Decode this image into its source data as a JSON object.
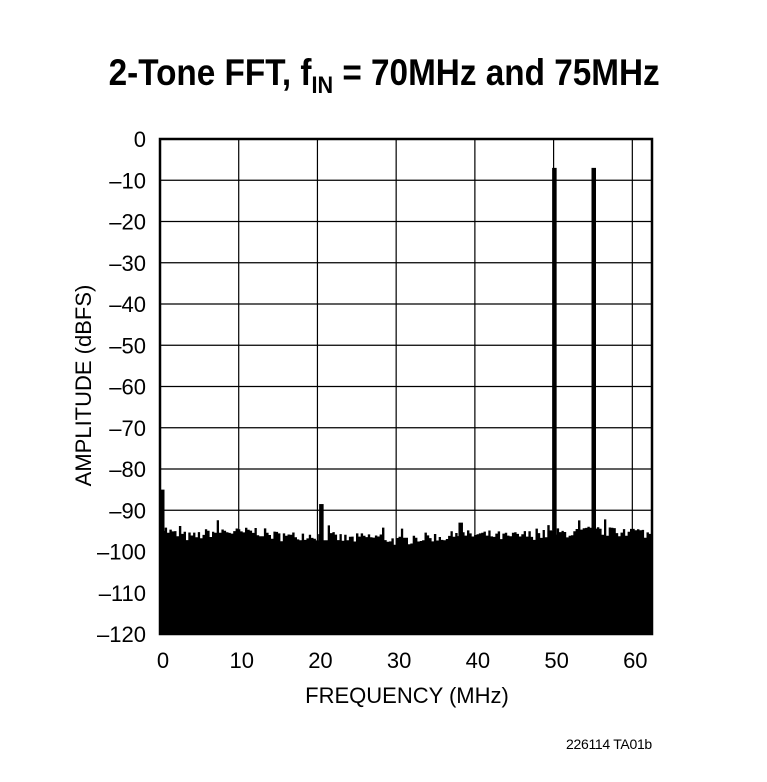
{
  "title": {
    "prefix": "2-Tone FFT, f",
    "subscript": "IN",
    "suffix": " = 70MHz and 75MHz"
  },
  "figure_id": "226114 TA01b",
  "chart_data": {
    "type": "bar",
    "title": "2-Tone FFT, fIN = 70MHz and 75MHz",
    "xlabel": "FREQUENCY (MHz)",
    "ylabel": "AMPLITUDE (dBFS)",
    "xlim": [
      0,
      62.5
    ],
    "ylim": [
      -120,
      0
    ],
    "x_ticks": [
      0,
      10,
      20,
      30,
      40,
      50,
      60
    ],
    "x_tick_labels": [
      "0",
      "10",
      "20",
      "30",
      "40",
      "50",
      "60"
    ],
    "y_ticks": [
      0,
      -10,
      -20,
      -30,
      -40,
      -50,
      -60,
      -70,
      -80,
      -90,
      -100,
      -110,
      -120
    ],
    "y_tick_labels": [
      "0",
      "–10",
      "–20",
      "–30",
      "–40",
      "–50",
      "–60",
      "–70",
      "–80",
      "–90",
      "–100",
      "–110",
      "–120"
    ],
    "grid": true,
    "baseline": -120,
    "noise_floor": {
      "x_range": [
        0,
        62.5
      ],
      "profile": [
        [
          0.3,
          -94.5
        ],
        [
          2,
          -96
        ],
        [
          4,
          -96.5
        ],
        [
          6,
          -95.5
        ],
        [
          8,
          -95
        ],
        [
          10,
          -95.5
        ],
        [
          12,
          -95
        ],
        [
          14,
          -96
        ],
        [
          16,
          -96.5
        ],
        [
          18,
          -96
        ],
        [
          22,
          -96.5
        ],
        [
          24,
          -97
        ],
        [
          26,
          -96.5
        ],
        [
          28,
          -96.5
        ],
        [
          30,
          -97.5
        ],
        [
          32,
          -97
        ],
        [
          34,
          -96.5
        ],
        [
          36,
          -96.5
        ],
        [
          38,
          -96
        ],
        [
          40,
          -96
        ],
        [
          42,
          -96
        ],
        [
          44,
          -96.5
        ],
        [
          46,
          -96
        ],
        [
          48,
          -96
        ],
        [
          50,
          -95.5
        ],
        [
          52,
          -95.5
        ],
        [
          54,
          -95
        ],
        [
          56,
          -95
        ],
        [
          58,
          -95.5
        ],
        [
          60,
          -95
        ],
        [
          62.5,
          -96
        ]
      ]
    },
    "peaks": [
      {
        "x": 0,
        "y": -85
      },
      {
        "x": 20.5,
        "y": -88.5
      },
      {
        "x": 38.2,
        "y": -93
      },
      {
        "x": 50.1,
        "y": -7
      },
      {
        "x": 55.1,
        "y": -7
      }
    ]
  }
}
